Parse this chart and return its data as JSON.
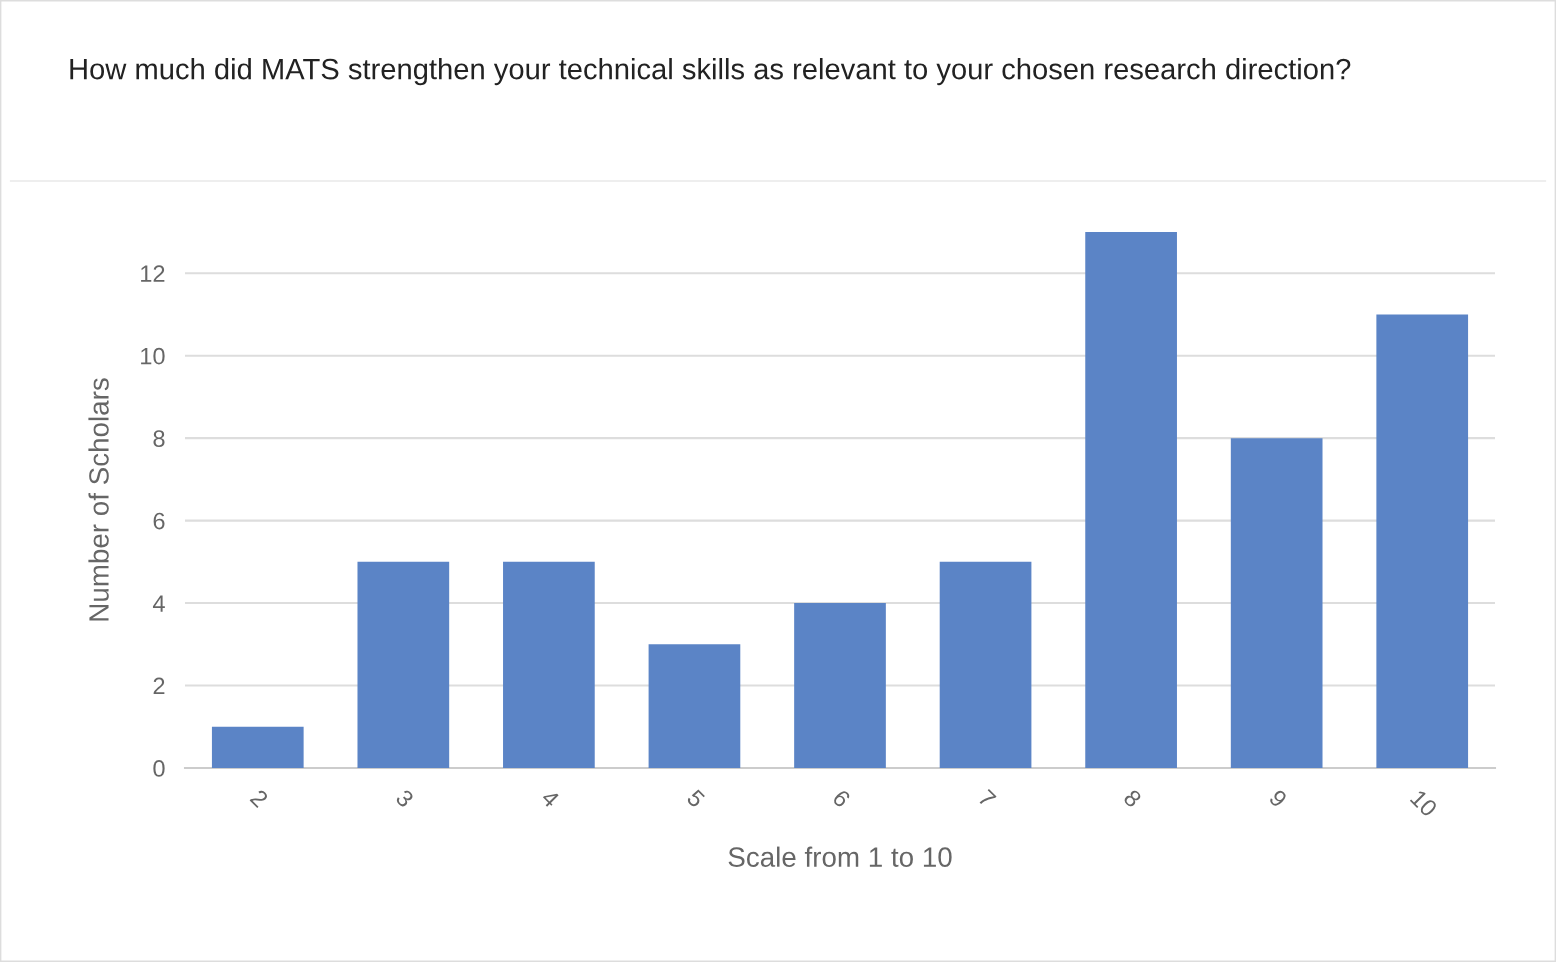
{
  "chart_data": {
    "type": "bar",
    "title": "How much did MATS strengthen your technical skills as relevant to your chosen research direction?",
    "xlabel": "Scale from 1 to 10",
    "ylabel": "Number of Scholars",
    "categories": [
      "2",
      "3",
      "4",
      "5",
      "6",
      "7",
      "8",
      "9",
      "10"
    ],
    "values": [
      1,
      5,
      5,
      3,
      4,
      5,
      13,
      8,
      11
    ],
    "color": "#5b84c6",
    "ylim": [
      0,
      13
    ],
    "yticks": [
      0,
      2,
      4,
      6,
      8,
      10,
      12
    ],
    "grid": "y"
  }
}
